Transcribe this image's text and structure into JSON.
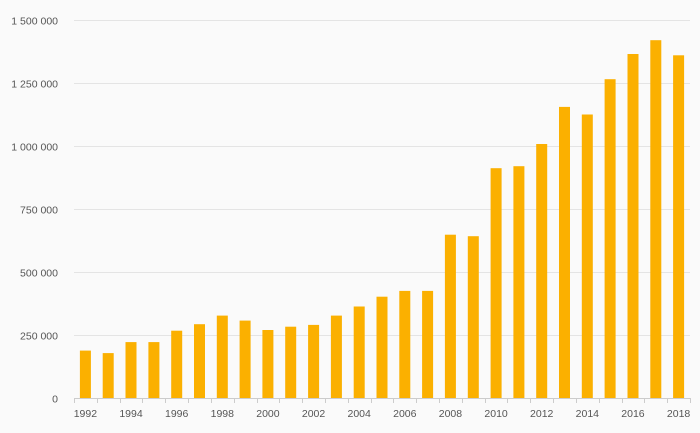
{
  "chart_data": {
    "type": "bar",
    "title": "",
    "xlabel": "",
    "ylabel": "",
    "categories": [
      "1992",
      "1993",
      "1994",
      "1995",
      "1996",
      "1997",
      "1998",
      "1999",
      "2000",
      "2001",
      "2002",
      "2003",
      "2004",
      "2005",
      "2006",
      "2007",
      "2008",
      "2009",
      "2010",
      "2011",
      "2012",
      "2013",
      "2014",
      "2015",
      "2016",
      "2017",
      "2018"
    ],
    "values": [
      188000,
      178000,
      222000,
      222000,
      267000,
      293000,
      327000,
      307000,
      270000,
      283000,
      290000,
      327000,
      363000,
      402000,
      425000,
      425000,
      648000,
      642000,
      912000,
      920000,
      1008000,
      1155000,
      1125000,
      1265000,
      1365000,
      1420000,
      1360000
    ],
    "ylim": [
      0,
      1500000
    ],
    "yticks": [
      0,
      250000,
      500000,
      750000,
      1000000,
      1250000,
      1500000
    ],
    "ytick_labels": [
      "0",
      "250 000",
      "500 000",
      "750 000",
      "1 000 000",
      "1 250 000",
      "1 500 000"
    ],
    "xtick_labels": [
      "1992",
      "1994",
      "1996",
      "1998",
      "2000",
      "2002",
      "2004",
      "2006",
      "2008",
      "2010",
      "2012",
      "2014",
      "2016",
      "2018"
    ],
    "grid": true,
    "legend": "none",
    "colors": {
      "bar": "#fbb000",
      "background": "#fafafa",
      "grid": "#e4e4e4",
      "text": "#555555"
    }
  }
}
